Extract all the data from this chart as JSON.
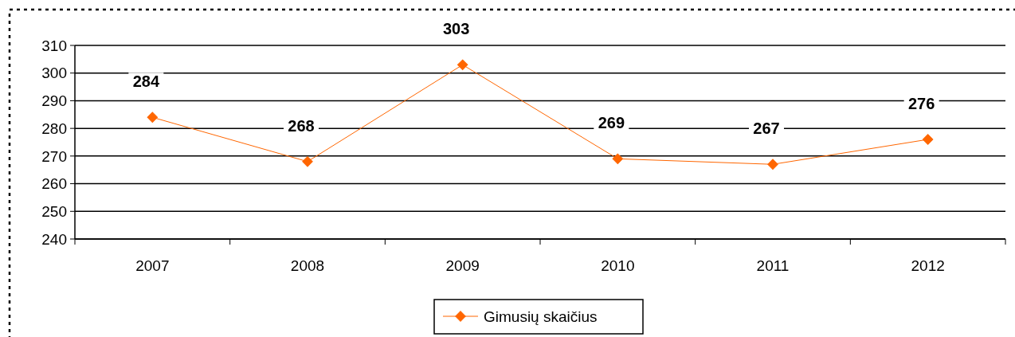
{
  "chart_data": {
    "type": "line",
    "categories": [
      "2007",
      "2008",
      "2009",
      "2010",
      "2011",
      "2012"
    ],
    "series": [
      {
        "name": "Gimusių skaičius",
        "color": "#ff6600",
        "values": [
          284,
          268,
          303,
          269,
          267,
          276
        ]
      }
    ],
    "ylim": [
      240,
      310
    ],
    "yticks": [
      240,
      250,
      260,
      270,
      280,
      290,
      300,
      310
    ],
    "grid": "y",
    "legend": "bottom",
    "marker": "diamond",
    "data_labels": true
  }
}
